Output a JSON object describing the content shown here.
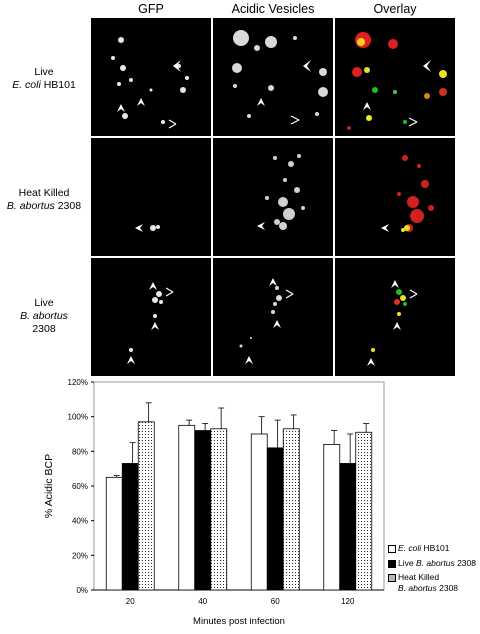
{
  "figure": {
    "columns": [
      "GFP",
      "Acidic Vesicles",
      "Overlay"
    ],
    "rows": [
      {
        "line1": "Live",
        "italic": "E. coli",
        "suffix": " HB101",
        "line3": ""
      },
      {
        "line1": "Heat Killed",
        "italic": "B. abortus",
        "suffix": " 2308",
        "line3": ""
      },
      {
        "line1": "Live",
        "italic": "B. abortus",
        "suffix": "",
        "line3": "2308"
      }
    ]
  },
  "chart_data": {
    "type": "bar",
    "categories": [
      "20",
      "40",
      "60",
      "120"
    ],
    "series": [
      {
        "name": "E. coli HB101",
        "values": [
          65,
          95,
          90,
          84
        ],
        "errors": [
          1,
          3,
          10,
          8
        ]
      },
      {
        "name": "Live B. abortus 2308",
        "values": [
          73,
          92,
          82,
          73
        ],
        "errors": [
          12,
          4,
          16,
          17
        ]
      },
      {
        "name": "Heat Killed B. abortus 2308",
        "values": [
          97,
          93,
          93,
          91
        ],
        "errors": [
          11,
          12,
          8,
          5
        ]
      }
    ],
    "ylim": [
      0,
      120
    ],
    "ytick_labels": [
      "0%",
      "20%",
      "40%",
      "60%",
      "80%",
      "100%",
      "120%"
    ],
    "xlabel": "Minutes post infection",
    "ylabel": "% Acidic BCP",
    "legend": [
      {
        "italic": "E. coli",
        "text": " HB101",
        "pre": ""
      },
      {
        "italic": "B. abortus",
        "text": " 2308",
        "pre": "Live "
      },
      {
        "italic": "B. abortus",
        "text": " 2308",
        "pre": "Heat Killed"
      }
    ],
    "colors": {
      "series1": "#ffffff",
      "series2": "#000000",
      "series3": "dotted"
    }
  }
}
